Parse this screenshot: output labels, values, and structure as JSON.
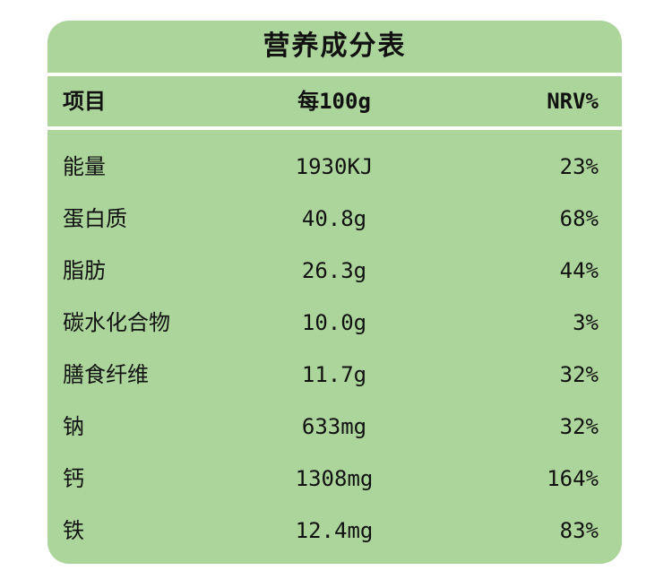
{
  "table": {
    "title": "营养成分表",
    "headers": {
      "item": "项目",
      "per100g": "每100g",
      "nrv": "NRV%"
    },
    "rows": [
      {
        "item": "能量",
        "per100g": "1930KJ",
        "nrv": "23%"
      },
      {
        "item": "蛋白质",
        "per100g": "40.8g",
        "nrv": "68%"
      },
      {
        "item": "脂肪",
        "per100g": "26.3g",
        "nrv": "44%"
      },
      {
        "item": "碳水化合物",
        "per100g": "10.0g",
        "nrv": "3%"
      },
      {
        "item": "膳食纤维",
        "per100g": "11.7g",
        "nrv": "32%"
      },
      {
        "item": "钠",
        "per100g": "633mg",
        "nrv": "32%"
      },
      {
        "item": "钙",
        "per100g": "1308mg",
        "nrv": "164%"
      },
      {
        "item": "铁",
        "per100g": "12.4mg",
        "nrv": "83%"
      }
    ],
    "colors": {
      "panel": "#acd59b",
      "rule": "#ffffff",
      "text": "#111111"
    }
  }
}
